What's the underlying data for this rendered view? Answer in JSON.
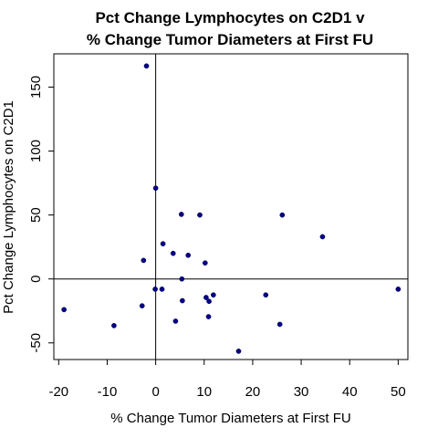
{
  "chart_data": {
    "type": "scatter",
    "title_line1": "Pct Change Lymphocytes on C2D1 v",
    "title_line2": "% Change Tumor Diameters at First FU",
    "xlabel": "% Change Tumor Diameters at First FU",
    "ylabel": "Pct Change Lymphocytes on C2D1",
    "xlim": [
      -21,
      52
    ],
    "ylim": [
      -63,
      176
    ],
    "x_ticks": [
      -20,
      -10,
      0,
      10,
      20,
      30,
      40,
      50
    ],
    "y_ticks": [
      -50,
      0,
      50,
      100,
      150
    ],
    "reference_lines": {
      "x": 0,
      "y": 0
    },
    "grid": false,
    "point_color": "#00008b",
    "points": [
      {
        "x": -1.9,
        "y": 166.5
      },
      {
        "x": 0.0,
        "y": 71.0
      },
      {
        "x": 5.3,
        "y": 50.5
      },
      {
        "x": 9.1,
        "y": 50.0
      },
      {
        "x": 26.1,
        "y": 50.0
      },
      {
        "x": 34.4,
        "y": 33.0
      },
      {
        "x": 1.5,
        "y": 27.5
      },
      {
        "x": 3.6,
        "y": 20.0
      },
      {
        "x": 6.7,
        "y": 18.5
      },
      {
        "x": -2.5,
        "y": 14.5
      },
      {
        "x": 10.2,
        "y": 12.5
      },
      {
        "x": 5.4,
        "y": 0.0
      },
      {
        "x": -0.1,
        "y": -8.0
      },
      {
        "x": 1.3,
        "y": -8.0
      },
      {
        "x": 50.0,
        "y": -8.0
      },
      {
        "x": 11.9,
        "y": -12.5
      },
      {
        "x": 22.7,
        "y": -12.5
      },
      {
        "x": 10.4,
        "y": -14.5
      },
      {
        "x": 5.5,
        "y": -17.0
      },
      {
        "x": 11.0,
        "y": -17.5
      },
      {
        "x": -2.8,
        "y": -21.0
      },
      {
        "x": -18.9,
        "y": -24.0
      },
      {
        "x": 10.9,
        "y": -29.5
      },
      {
        "x": 4.1,
        "y": -33.0
      },
      {
        "x": -8.6,
        "y": -36.5
      },
      {
        "x": 25.6,
        "y": -35.5
      },
      {
        "x": 17.1,
        "y": -56.5
      }
    ]
  }
}
